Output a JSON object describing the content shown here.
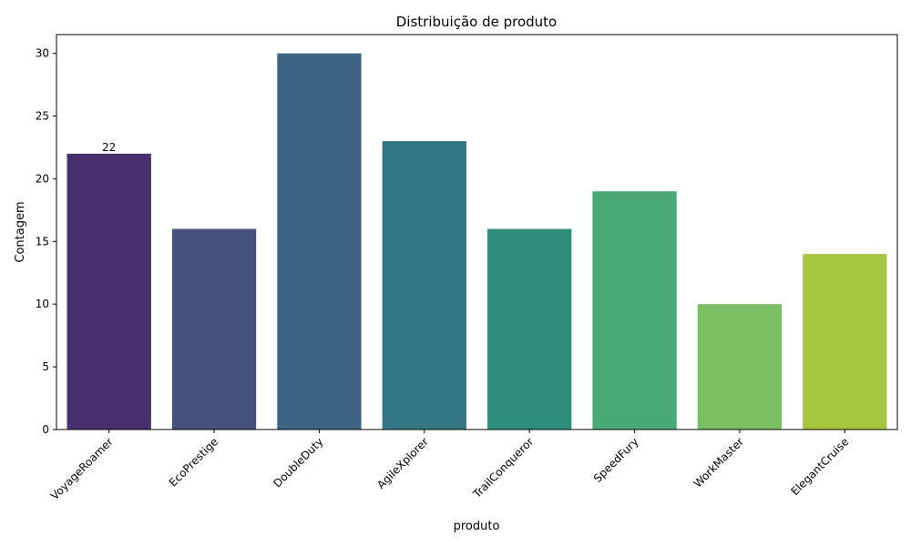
{
  "chart_data": {
    "type": "bar",
    "title": "Distribuição de produto",
    "xlabel": "produto",
    "ylabel": "Contagem",
    "categories": [
      "VoyageRoamer",
      "EcoPrestige",
      "DoubleDuty",
      "AgileXplorer",
      "TrailConqueror",
      "SpeedFury",
      "WorkMaster",
      "ElegantCruise"
    ],
    "values": [
      22,
      16,
      30,
      23,
      16,
      19,
      10,
      14
    ],
    "colors": [
      "#482f6e",
      "#46507f",
      "#3e6484",
      "#347682",
      "#2e8d7c",
      "#48a876",
      "#78be62",
      "#a7c640"
    ],
    "ylim": [
      0,
      31.5
    ],
    "yticks": [
      0,
      5,
      10,
      15,
      20,
      25,
      30
    ],
    "data_labels": [
      {
        "category": "VoyageRoamer",
        "text": "22"
      }
    ],
    "grid": false,
    "legend": "none"
  }
}
